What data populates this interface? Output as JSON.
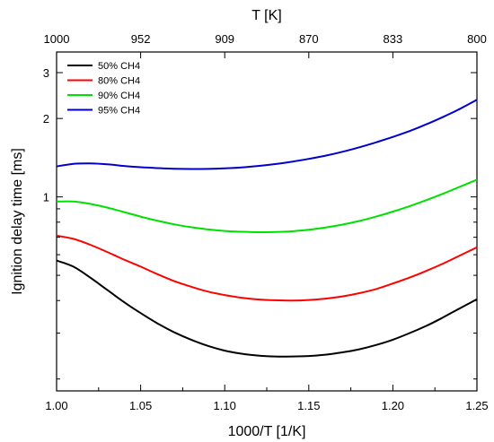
{
  "chart_data": {
    "type": "line",
    "x_axis": {
      "label": "1000/T [1/K]",
      "lim": [
        1.0,
        1.25
      ],
      "ticks": [
        1.0,
        1.05,
        1.1,
        1.15,
        1.2,
        1.25
      ],
      "tick_labels": [
        "1.00",
        "1.05",
        "1.10",
        "1.15",
        "1.20",
        "1.25"
      ]
    },
    "top_axis": {
      "label": "T [K]",
      "tick_labels": [
        "1000",
        "952",
        "909",
        "870",
        "833",
        "800"
      ]
    },
    "y_axis": {
      "label": "Ignition delay time [ms]",
      "scale": "log",
      "lim": [
        0.18,
        3.6
      ],
      "tick_values": [
        1,
        2,
        3
      ],
      "tick_labels": [
        "1",
        "2",
        "3"
      ]
    },
    "grid": false,
    "legend_position": "top-left",
    "series": [
      {
        "name": "50% CH4",
        "color": "#000000",
        "x": [
          1.0,
          1.01,
          1.02,
          1.03,
          1.04,
          1.05,
          1.06,
          1.07,
          1.08,
          1.09,
          1.1,
          1.11,
          1.12,
          1.13,
          1.14,
          1.15,
          1.16,
          1.17,
          1.18,
          1.19,
          1.2,
          1.21,
          1.22,
          1.23,
          1.24,
          1.25
        ],
        "y": [
          0.57,
          0.54,
          0.49,
          0.44,
          0.395,
          0.358,
          0.327,
          0.302,
          0.283,
          0.268,
          0.257,
          0.25,
          0.246,
          0.244,
          0.244,
          0.245,
          0.248,
          0.253,
          0.26,
          0.27,
          0.283,
          0.3,
          0.32,
          0.345,
          0.374,
          0.405
        ]
      },
      {
        "name": "80% CH4",
        "color": "#ff0000",
        "x": [
          1.0,
          1.01,
          1.02,
          1.03,
          1.04,
          1.05,
          1.06,
          1.07,
          1.08,
          1.09,
          1.1,
          1.11,
          1.12,
          1.13,
          1.14,
          1.15,
          1.16,
          1.17,
          1.18,
          1.19,
          1.2,
          1.21,
          1.22,
          1.23,
          1.24,
          1.25
        ],
        "y": [
          0.71,
          0.69,
          0.655,
          0.615,
          0.575,
          0.54,
          0.505,
          0.475,
          0.452,
          0.433,
          0.42,
          0.41,
          0.404,
          0.401,
          0.4,
          0.402,
          0.407,
          0.415,
          0.427,
          0.443,
          0.465,
          0.49,
          0.52,
          0.555,
          0.596,
          0.64
        ]
      },
      {
        "name": "90% CH4",
        "color": "#00e000",
        "x": [
          1.0,
          1.01,
          1.02,
          1.03,
          1.04,
          1.05,
          1.06,
          1.07,
          1.08,
          1.09,
          1.1,
          1.11,
          1.12,
          1.13,
          1.14,
          1.15,
          1.16,
          1.17,
          1.18,
          1.19,
          1.2,
          1.21,
          1.22,
          1.23,
          1.24,
          1.25
        ],
        "y": [
          0.96,
          0.96,
          0.94,
          0.91,
          0.875,
          0.84,
          0.81,
          0.785,
          0.765,
          0.75,
          0.74,
          0.735,
          0.732,
          0.733,
          0.738,
          0.748,
          0.763,
          0.783,
          0.808,
          0.84,
          0.878,
          0.922,
          0.972,
          1.03,
          1.095,
          1.165
        ]
      },
      {
        "name": "95% CH4",
        "color": "#0000cc",
        "x": [
          1.0,
          1.01,
          1.02,
          1.03,
          1.04,
          1.05,
          1.06,
          1.07,
          1.08,
          1.09,
          1.1,
          1.11,
          1.12,
          1.13,
          1.14,
          1.15,
          1.16,
          1.17,
          1.18,
          1.19,
          1.2,
          1.21,
          1.22,
          1.23,
          1.24,
          1.25
        ],
        "y": [
          1.31,
          1.34,
          1.345,
          1.335,
          1.315,
          1.3,
          1.29,
          1.283,
          1.28,
          1.281,
          1.287,
          1.298,
          1.315,
          1.337,
          1.365,
          1.4,
          1.44,
          1.49,
          1.55,
          1.62,
          1.7,
          1.79,
          1.9,
          2.03,
          2.18,
          2.36
        ]
      }
    ]
  }
}
